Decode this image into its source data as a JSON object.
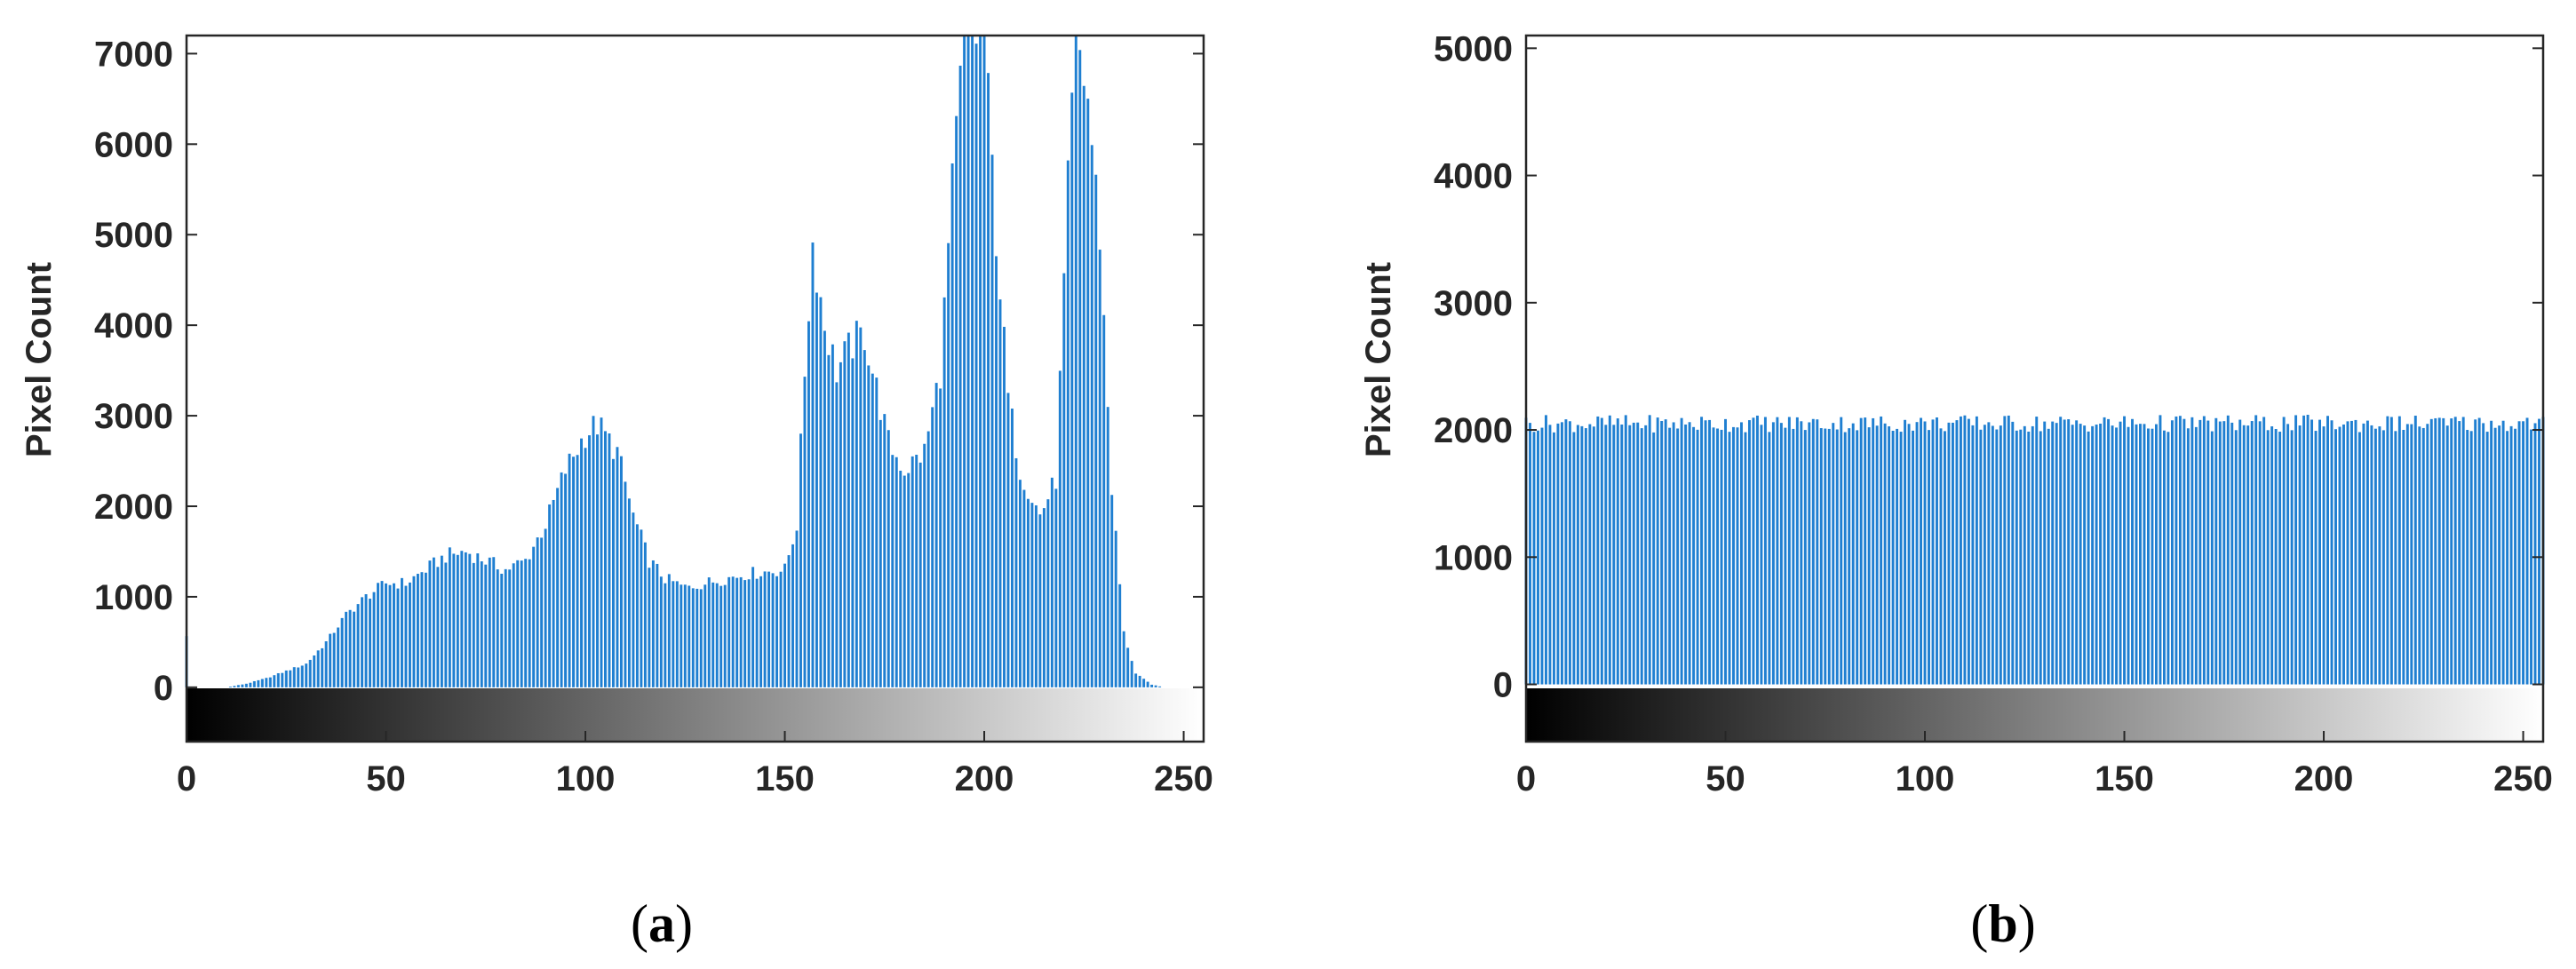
{
  "colors": {
    "bar": "#1f7fd1",
    "axis": "#262626",
    "background": "#ffffff"
  },
  "chart_data": [
    {
      "type": "bar",
      "panel_label_open": "(",
      "panel_label_letter": "a",
      "panel_label_close": ")",
      "title": "",
      "xlabel": "",
      "ylabel": "Pixel Count",
      "xlim": [
        0,
        255
      ],
      "ylim": [
        -600,
        7200
      ],
      "x_ticks": [
        0,
        50,
        100,
        150,
        200,
        250
      ],
      "y_ticks": [
        0,
        1000,
        2000,
        3000,
        4000,
        5000,
        6000,
        7000
      ],
      "grid": false,
      "colorbar": "grayscale 0-255 beneath bars",
      "keypoints": [
        [
          0,
          550
        ],
        [
          1,
          0
        ],
        [
          10,
          0
        ],
        [
          15,
          40
        ],
        [
          20,
          100
        ],
        [
          25,
          180
        ],
        [
          30,
          260
        ],
        [
          35,
          500
        ],
        [
          40,
          800
        ],
        [
          45,
          1000
        ],
        [
          50,
          1150
        ],
        [
          55,
          1150
        ],
        [
          60,
          1300
        ],
        [
          65,
          1450
        ],
        [
          70,
          1500
        ],
        [
          75,
          1400
        ],
        [
          80,
          1300
        ],
        [
          85,
          1400
        ],
        [
          90,
          1800
        ],
        [
          95,
          2400
        ],
        [
          100,
          2800
        ],
        [
          103,
          2900
        ],
        [
          108,
          2600
        ],
        [
          112,
          1900
        ],
        [
          116,
          1400
        ],
        [
          120,
          1200
        ],
        [
          125,
          1100
        ],
        [
          130,
          1150
        ],
        [
          140,
          1250
        ],
        [
          150,
          1300
        ],
        [
          153,
          1800
        ],
        [
          155,
          3500
        ],
        [
          157,
          4900
        ],
        [
          160,
          4000
        ],
        [
          163,
          3500
        ],
        [
          167,
          3800
        ],
        [
          170,
          3900
        ],
        [
          173,
          3300
        ],
        [
          176,
          2700
        ],
        [
          180,
          2400
        ],
        [
          185,
          2600
        ],
        [
          189,
          3500
        ],
        [
          192,
          5500
        ],
        [
          195,
          7200
        ],
        [
          200,
          7200
        ],
        [
          203,
          5000
        ],
        [
          206,
          3200
        ],
        [
          209,
          2400
        ],
        [
          214,
          1900
        ],
        [
          218,
          2300
        ],
        [
          221,
          5500
        ],
        [
          223,
          7200
        ],
        [
          226,
          6500
        ],
        [
          229,
          5000
        ],
        [
          232,
          2200
        ],
        [
          235,
          600
        ],
        [
          238,
          150
        ],
        [
          242,
          30
        ],
        [
          245,
          0
        ],
        [
          255,
          0
        ]
      ]
    },
    {
      "type": "bar",
      "panel_label_open": "(",
      "panel_label_letter": "b",
      "panel_label_close": ")",
      "title": "",
      "xlabel": "",
      "ylabel": "Pixel Count",
      "xlim": [
        0,
        255
      ],
      "ylim": [
        -450,
        5100
      ],
      "x_ticks": [
        0,
        50,
        100,
        150,
        200,
        250
      ],
      "y_ticks": [
        0,
        1000,
        2000,
        3000,
        4000,
        5000
      ],
      "grid": false,
      "colorbar": "grayscale 0-255 beneath bars",
      "mean_value": 2050,
      "variation": 70
    }
  ]
}
